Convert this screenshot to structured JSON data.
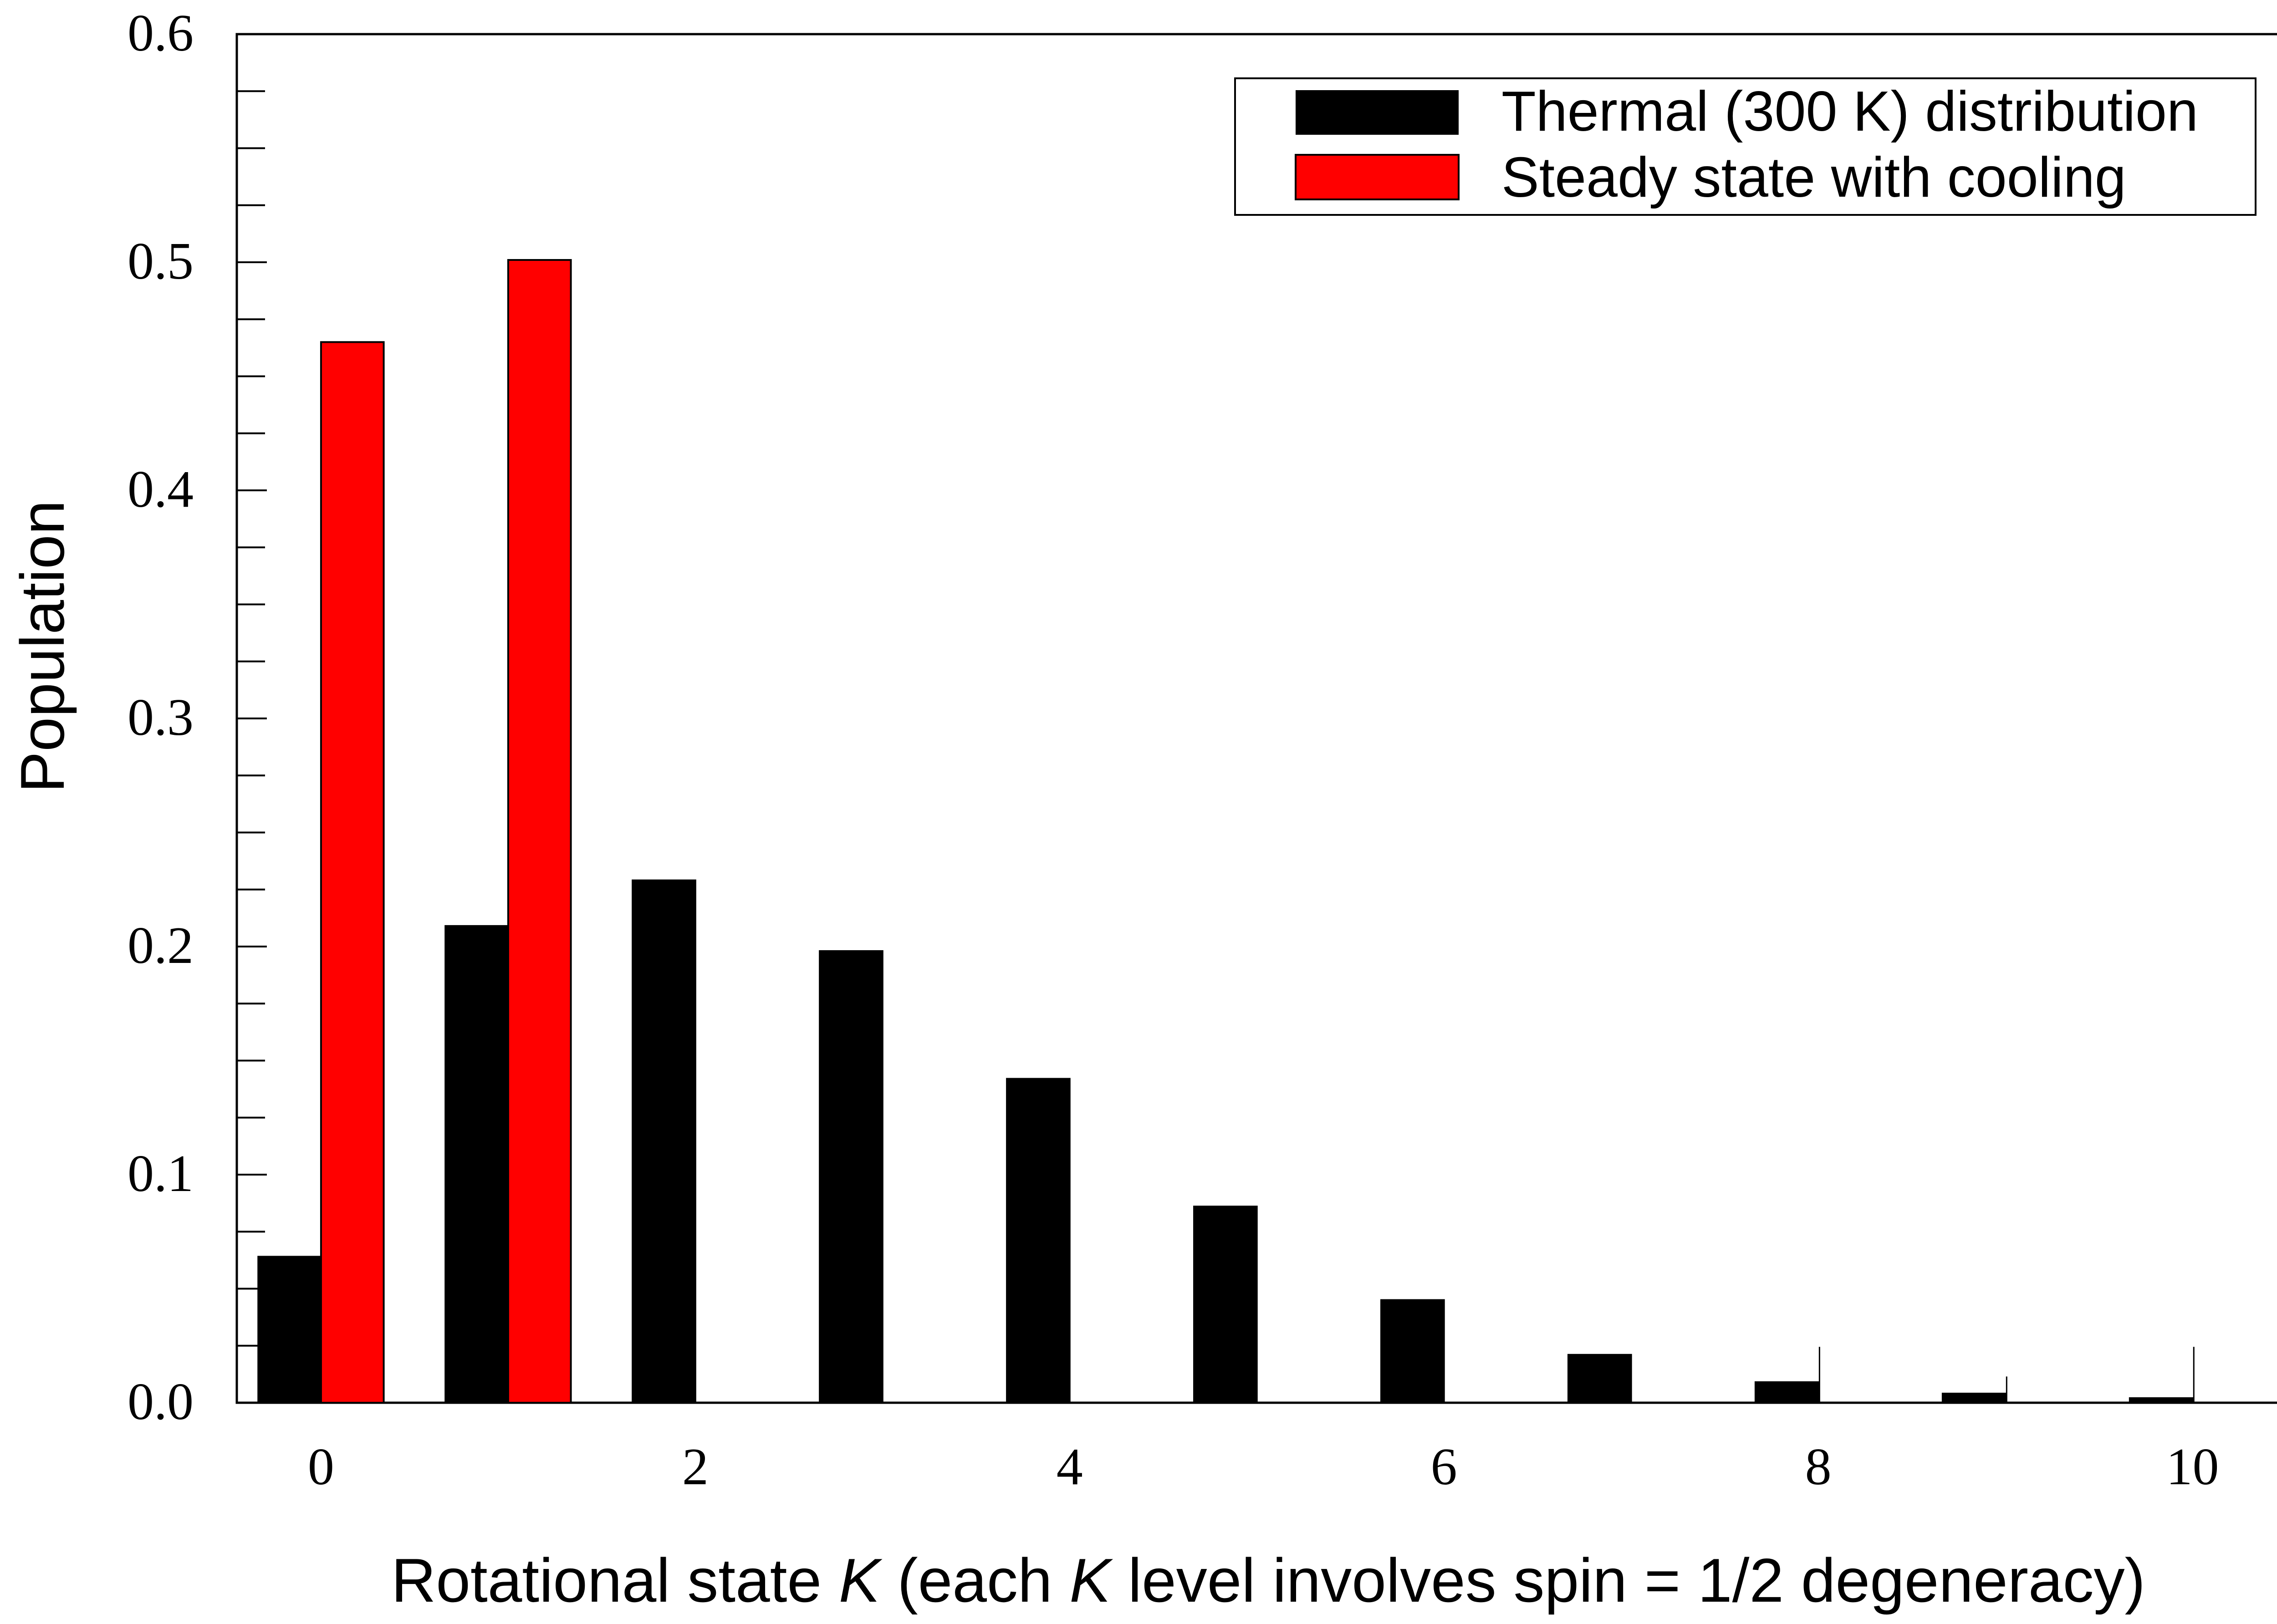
{
  "chart_data": {
    "type": "bar",
    "categories": [
      "0",
      "1",
      "2",
      "3",
      "4",
      "5",
      "6",
      "7",
      "8",
      "9",
      "10"
    ],
    "x": [
      0,
      1,
      2,
      3,
      4,
      5,
      6,
      7,
      8,
      9,
      10
    ],
    "series": [
      {
        "name": "Thermal (300 K) distribution",
        "color": "#000000",
        "values": [
          0.064,
          0.209,
          0.229,
          0.198,
          0.142,
          0.086,
          0.045,
          0.021,
          0.009,
          0.004,
          0.002
        ]
      },
      {
        "name": "Steady state with cooling",
        "color": "#ff0000",
        "values": [
          0.465,
          0.501,
          0,
          0,
          0,
          0,
          0,
          0,
          0,
          0,
          0
        ]
      }
    ],
    "title": "",
    "xlabel": "Rotational state K (each K level involves spin = 1/2 degeneracy)",
    "xlabel_parts": {
      "a": "Rotational state ",
      "k1": "K",
      "b": " (each ",
      "k2": "K",
      "c": " level involves spin = 1/2 degeneracy)"
    },
    "ylabel": "Population",
    "xlim": [
      -0.45,
      10.5
    ],
    "ylim": [
      0,
      0.6
    ],
    "x_ticks": [
      "0",
      "2",
      "4",
      "6",
      "8",
      "10"
    ],
    "y_ticks": [
      "0.0",
      "0.1",
      "0.2",
      "0.3",
      "0.4",
      "0.5",
      "0.6"
    ],
    "grid": false,
    "legend_position": "top-right"
  }
}
